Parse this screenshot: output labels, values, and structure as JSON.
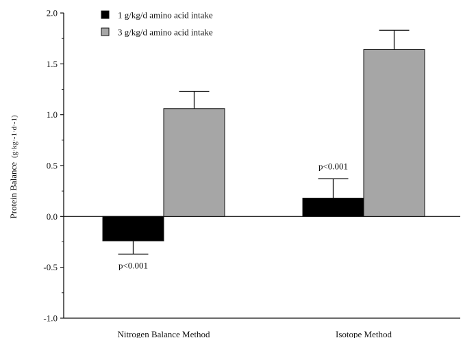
{
  "chart_data": {
    "type": "bar",
    "title": "",
    "xlabel": "",
    "ylabel": "Protein Balance",
    "ylabel_unit": "(g·kg·-1·d·-1)",
    "ylim": [
      -1.0,
      2.0
    ],
    "yticks": [
      "-1.0",
      "-0.5",
      "0.0",
      "0.5",
      "1.0",
      "1.5",
      "2.0"
    ],
    "ytick_values": [
      -1.0,
      -0.5,
      0.0,
      0.5,
      1.0,
      1.5,
      2.0
    ],
    "grid": false,
    "legend_position": "top-left",
    "categories": [
      "Nitrogen Balance Method",
      "Isotope Method"
    ],
    "series": [
      {
        "name": "1 g/kg/d amino acid intake",
        "color": "#000000",
        "values": [
          -0.24,
          0.18
        ],
        "error": [
          0.13,
          0.19
        ]
      },
      {
        "name": "3 g/kg/d amino acid intake",
        "color": "#a6a6a6",
        "values": [
          1.06,
          1.64
        ],
        "error": [
          0.17,
          0.19
        ]
      }
    ],
    "annotations": [
      {
        "text": "p<0.001",
        "category": 0,
        "series": 0
      },
      {
        "text": "p<0.001",
        "category": 1,
        "series": 0
      }
    ]
  }
}
